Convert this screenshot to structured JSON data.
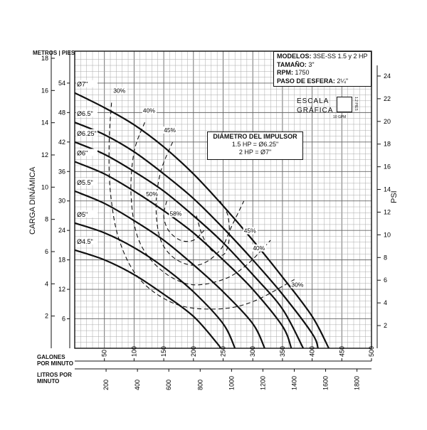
{
  "header": {
    "modelos_label": "MODELOS:",
    "modelos_value": "3SE-SS 1.5 y 2 HP",
    "tamano_label": "TAMAÑO:",
    "tamano_value": "3\"",
    "rpm_label": "RPM:",
    "rpm_value": "1750",
    "paso_label": "PASO DE ESFERA:",
    "paso_value": "2¼\""
  },
  "escala": {
    "line1": "ESCALA",
    "line2": "GRÁFICA",
    "unit_v": "1.2 PIES",
    "unit_h": "10 GPM"
  },
  "impeller_box": {
    "title": "DIÁMETRO DEL IMPULSOR",
    "line1": "1.5 HP = Ø6.25\"",
    "line2": "2 HP = Ø7\""
  },
  "axes": {
    "left_units": "METROS",
    "left_units2": "PIES",
    "left_title": "CARGA DINÁMICA",
    "right_title": "PSI",
    "bottom_gpm_label": "GALONES POR MINUTO",
    "bottom_lpm_label": "LITROS POR MINUTO"
  },
  "chart_data": {
    "type": "line",
    "title": "",
    "xlabel": "GALONES POR MINUTO",
    "ylabel": "CARGA DINÁMICA",
    "xlim": [
      0,
      500
    ],
    "ylim_feet": [
      0,
      60
    ],
    "ylim_meters": [
      0,
      18.3
    ],
    "ylim_psi": [
      0,
      26
    ],
    "x_ticks_gpm": [
      50,
      100,
      150,
      200,
      250,
      300,
      350,
      400,
      450,
      500
    ],
    "x_ticks_lpm": [
      200,
      400,
      600,
      800,
      1000,
      1200,
      1400,
      1600,
      1800
    ],
    "y_ticks_feet": [
      6,
      12,
      18,
      24,
      30,
      36,
      42,
      48,
      54
    ],
    "y_ticks_meters": [
      2,
      4,
      6,
      8,
      10,
      12,
      14,
      16,
      18
    ],
    "y_ticks_psi": [
      2,
      4,
      6,
      8,
      10,
      12,
      14,
      16,
      18,
      20,
      22,
      24
    ],
    "series": [
      {
        "name": "Ø7\"",
        "points": [
          [
            0,
            52
          ],
          [
            50,
            49
          ],
          [
            100,
            45.5
          ],
          [
            150,
            41
          ],
          [
            200,
            35.5
          ],
          [
            250,
            29
          ],
          [
            300,
            22
          ],
          [
            350,
            14.5
          ],
          [
            400,
            6.5
          ],
          [
            428,
            0
          ]
        ]
      },
      {
        "name": "Ø6.5\"",
        "points": [
          [
            0,
            46
          ],
          [
            50,
            43.5
          ],
          [
            100,
            40
          ],
          [
            150,
            35.5
          ],
          [
            200,
            30.5
          ],
          [
            250,
            24.5
          ],
          [
            300,
            18
          ],
          [
            350,
            11
          ],
          [
            400,
            3
          ],
          [
            410,
            0
          ]
        ]
      },
      {
        "name": "Ø6.25\"",
        "points": [
          [
            0,
            42
          ],
          [
            50,
            39.5
          ],
          [
            100,
            36
          ],
          [
            150,
            32
          ],
          [
            200,
            27
          ],
          [
            250,
            21.5
          ],
          [
            300,
            15
          ],
          [
            350,
            8
          ],
          [
            385,
            0
          ]
        ]
      },
      {
        "name": "Ø6\"",
        "points": [
          [
            0,
            38
          ],
          [
            50,
            35.5
          ],
          [
            100,
            32
          ],
          [
            150,
            28
          ],
          [
            200,
            23.5
          ],
          [
            250,
            18
          ],
          [
            300,
            12
          ],
          [
            350,
            4.5
          ],
          [
            365,
            0
          ]
        ]
      },
      {
        "name": "Ø5.5\"",
        "points": [
          [
            0,
            32
          ],
          [
            50,
            29.5
          ],
          [
            100,
            26
          ],
          [
            150,
            22
          ],
          [
            200,
            17
          ],
          [
            250,
            11.5
          ],
          [
            300,
            5
          ],
          [
            320,
            0
          ]
        ]
      },
      {
        "name": "Ø5\"",
        "points": [
          [
            0,
            25.5
          ],
          [
            50,
            23.5
          ],
          [
            100,
            20.5
          ],
          [
            150,
            16.5
          ],
          [
            200,
            11.5
          ],
          [
            250,
            5
          ],
          [
            270,
            0
          ]
        ]
      },
      {
        "name": "Ø4.5\"",
        "points": [
          [
            0,
            20
          ],
          [
            50,
            18
          ],
          [
            100,
            15
          ],
          [
            150,
            11
          ],
          [
            200,
            6.5
          ],
          [
            240,
            1
          ],
          [
            245,
            0
          ]
        ]
      }
    ],
    "efficiency": [
      {
        "name": "30%",
        "points": [
          [
            62,
            50
          ],
          [
            58,
            42
          ],
          [
            60,
            32
          ],
          [
            75,
            22
          ],
          [
            110,
            14
          ],
          [
            170,
            9
          ],
          [
            240,
            8
          ],
          [
            300,
            9.5
          ],
          [
            370,
            14
          ]
        ]
      },
      {
        "name": "40%",
        "points": [
          [
            118,
            46
          ],
          [
            100,
            40
          ],
          [
            95,
            31
          ],
          [
            108,
            22
          ],
          [
            145,
            16
          ],
          [
            195,
            13
          ],
          [
            250,
            14
          ],
          [
            290,
            17
          ],
          [
            330,
            22
          ]
        ]
      },
      {
        "name": "45%",
        "points": [
          [
            165,
            42
          ],
          [
            145,
            36
          ],
          [
            137,
            29
          ],
          [
            145,
            22
          ],
          [
            172,
            18
          ],
          [
            210,
            17
          ],
          [
            245,
            20
          ],
          [
            265,
            25
          ],
          [
            285,
            30
          ]
        ]
      },
      {
        "name": "50%",
        "points": [
          [
            155,
            30
          ],
          [
            150,
            27
          ],
          [
            158,
            24
          ],
          [
            178,
            22
          ],
          [
            200,
            22
          ],
          [
            218,
            24
          ]
        ]
      },
      {
        "name": "58%",
        "points": [
          [
            205,
            27
          ],
          [
            215,
            23
          ],
          [
            230,
            20
          ],
          [
            250,
            19
          ],
          [
            260,
            22
          ],
          [
            258,
            27
          ],
          [
            245,
            30
          ]
        ]
      }
    ],
    "labels": {
      "curves": [
        "Ø7\"",
        "Ø6.5\"",
        "Ø6.25\"",
        "Ø6\"",
        "Ø5.5\"",
        "Ø5\"",
        "Ø4.5\""
      ],
      "efficiency": [
        "30%",
        "40%",
        "45%",
        "50%",
        "58%",
        "45%",
        "40%",
        "30%"
      ]
    },
    "grid": true
  }
}
